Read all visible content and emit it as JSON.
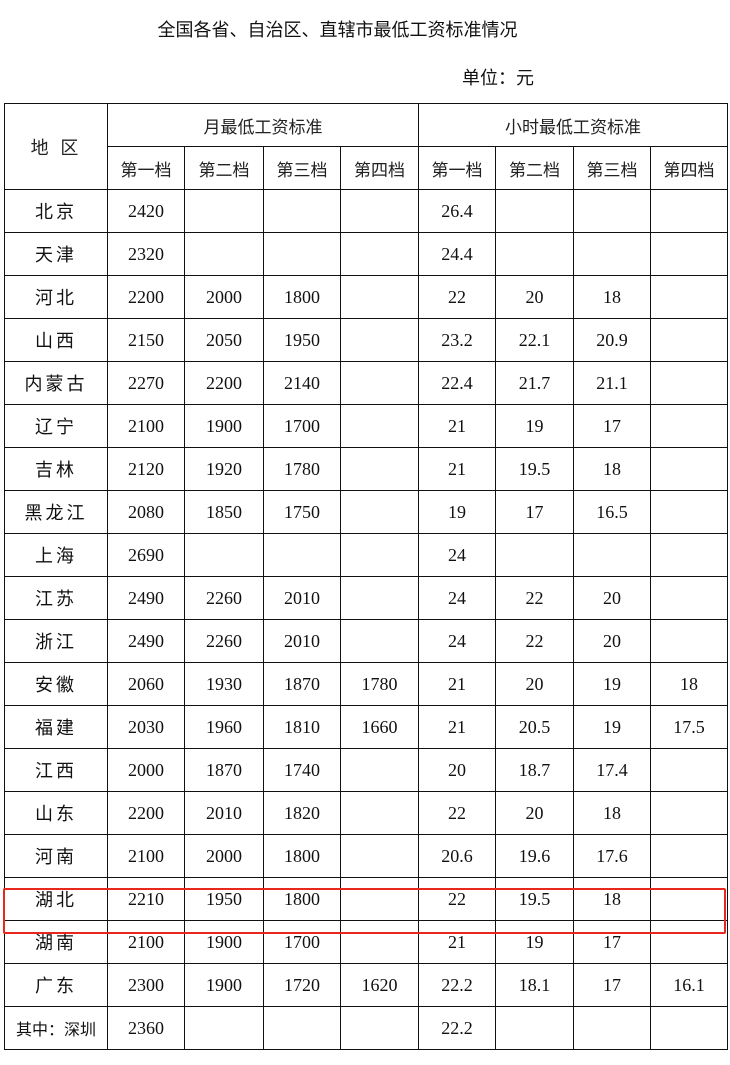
{
  "title": "全国各省、自治区、直辖市最低工资标准情况",
  "unit": "单位：元",
  "header": {
    "region": "地 区",
    "monthly": "月最低工资标准",
    "hourly": "小时最低工资标准",
    "tiers": [
      "第一档",
      "第二档",
      "第三档",
      "第四档"
    ]
  },
  "rows": [
    {
      "region": "北京",
      "m": [
        "2420",
        "",
        "",
        ""
      ],
      "h": [
        "26.4",
        "",
        "",
        ""
      ]
    },
    {
      "region": "天津",
      "m": [
        "2320",
        "",
        "",
        ""
      ],
      "h": [
        "24.4",
        "",
        "",
        ""
      ]
    },
    {
      "region": "河北",
      "m": [
        "2200",
        "2000",
        "1800",
        ""
      ],
      "h": [
        "22",
        "20",
        "18",
        ""
      ]
    },
    {
      "region": "山西",
      "m": [
        "2150",
        "2050",
        "1950",
        ""
      ],
      "h": [
        "23.2",
        "22.1",
        "20.9",
        ""
      ]
    },
    {
      "region": "内蒙古",
      "m": [
        "2270",
        "2200",
        "2140",
        ""
      ],
      "h": [
        "22.4",
        "21.7",
        "21.1",
        ""
      ]
    },
    {
      "region": "辽宁",
      "m": [
        "2100",
        "1900",
        "1700",
        ""
      ],
      "h": [
        "21",
        "19",
        "17",
        ""
      ]
    },
    {
      "region": "吉林",
      "m": [
        "2120",
        "1920",
        "1780",
        ""
      ],
      "h": [
        "21",
        "19.5",
        "18",
        ""
      ]
    },
    {
      "region": "黑龙江",
      "m": [
        "2080",
        "1850",
        "1750",
        ""
      ],
      "h": [
        "19",
        "17",
        "16.5",
        ""
      ]
    },
    {
      "region": "上海",
      "m": [
        "2690",
        "",
        "",
        ""
      ],
      "h": [
        "24",
        "",
        "",
        ""
      ]
    },
    {
      "region": "江苏",
      "m": [
        "2490",
        "2260",
        "2010",
        ""
      ],
      "h": [
        "24",
        "22",
        "20",
        ""
      ]
    },
    {
      "region": "浙江",
      "m": [
        "2490",
        "2260",
        "2010",
        ""
      ],
      "h": [
        "24",
        "22",
        "20",
        ""
      ]
    },
    {
      "region": "安徽",
      "m": [
        "2060",
        "1930",
        "1870",
        "1780"
      ],
      "h": [
        "21",
        "20",
        "19",
        "18"
      ]
    },
    {
      "region": "福建",
      "m": [
        "2030",
        "1960",
        "1810",
        "1660"
      ],
      "h": [
        "21",
        "20.5",
        "19",
        "17.5"
      ]
    },
    {
      "region": "江西",
      "m": [
        "2000",
        "1870",
        "1740",
        ""
      ],
      "h": [
        "20",
        "18.7",
        "17.4",
        ""
      ]
    },
    {
      "region": "山东",
      "m": [
        "2200",
        "2010",
        "1820",
        ""
      ],
      "h": [
        "22",
        "20",
        "18",
        ""
      ]
    },
    {
      "region": "河南",
      "m": [
        "2100",
        "2000",
        "1800",
        ""
      ],
      "h": [
        "20.6",
        "19.6",
        "17.6",
        ""
      ]
    },
    {
      "region": "湖北",
      "m": [
        "2210",
        "1950",
        "1800",
        ""
      ],
      "h": [
        "22",
        "19.5",
        "18",
        ""
      ]
    },
    {
      "region": "湖南",
      "m": [
        "2100",
        "1900",
        "1700",
        ""
      ],
      "h": [
        "21",
        "19",
        "17",
        ""
      ]
    },
    {
      "region": "广东",
      "m": [
        "2300",
        "1900",
        "1720",
        "1620"
      ],
      "h": [
        "22.2",
        "18.1",
        "17",
        "16.1"
      ]
    },
    {
      "region": "其中：深圳",
      "m": [
        "2360",
        "",
        "",
        ""
      ],
      "h": [
        "22.2",
        "",
        "",
        ""
      ]
    }
  ],
  "highlight": {
    "region": "湖北",
    "color": "#e8281e"
  }
}
